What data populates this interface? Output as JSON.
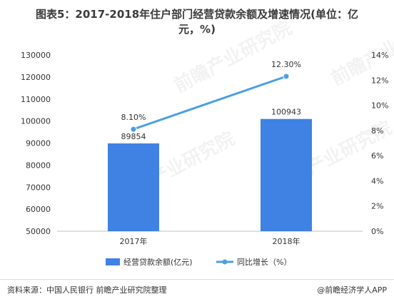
{
  "title": {
    "line1": "图表5：2017-2018年住户部门经营贷款余额及增速情况(单位：亿",
    "line2": "元，%)"
  },
  "chart_data": {
    "type": "bar",
    "categories": [
      "2017年",
      "2018年"
    ],
    "series": [
      {
        "name": "经营贷款余额(亿元)",
        "type": "bar",
        "axis": "left",
        "values": [
          89854,
          100943
        ],
        "labels": [
          "89854",
          "100943"
        ],
        "color": "#3f82e3"
      },
      {
        "name": "同比增长（%）",
        "type": "line",
        "axis": "right",
        "values": [
          8.1,
          12.3
        ],
        "labels": [
          "8.10%",
          "12.30%"
        ],
        "color": "#4aa0e3"
      }
    ],
    "y_left": {
      "ylim": [
        50000,
        130000
      ],
      "ticks": [
        "50000",
        "60000",
        "70000",
        "80000",
        "90000",
        "100000",
        "110000",
        "120000",
        "130000"
      ]
    },
    "y_right": {
      "ylim": [
        0,
        14
      ],
      "ticks": [
        "0%",
        "2%",
        "4%",
        "6%",
        "8%",
        "10%",
        "12%",
        "14%"
      ]
    },
    "legend_position": "bottom",
    "grid": false
  },
  "footer": {
    "source": "资料来源：中国人民银行 前瞻产业研究院整理",
    "brand": "@前瞻经济学人APP"
  },
  "watermark": "前瞻产业研究院"
}
